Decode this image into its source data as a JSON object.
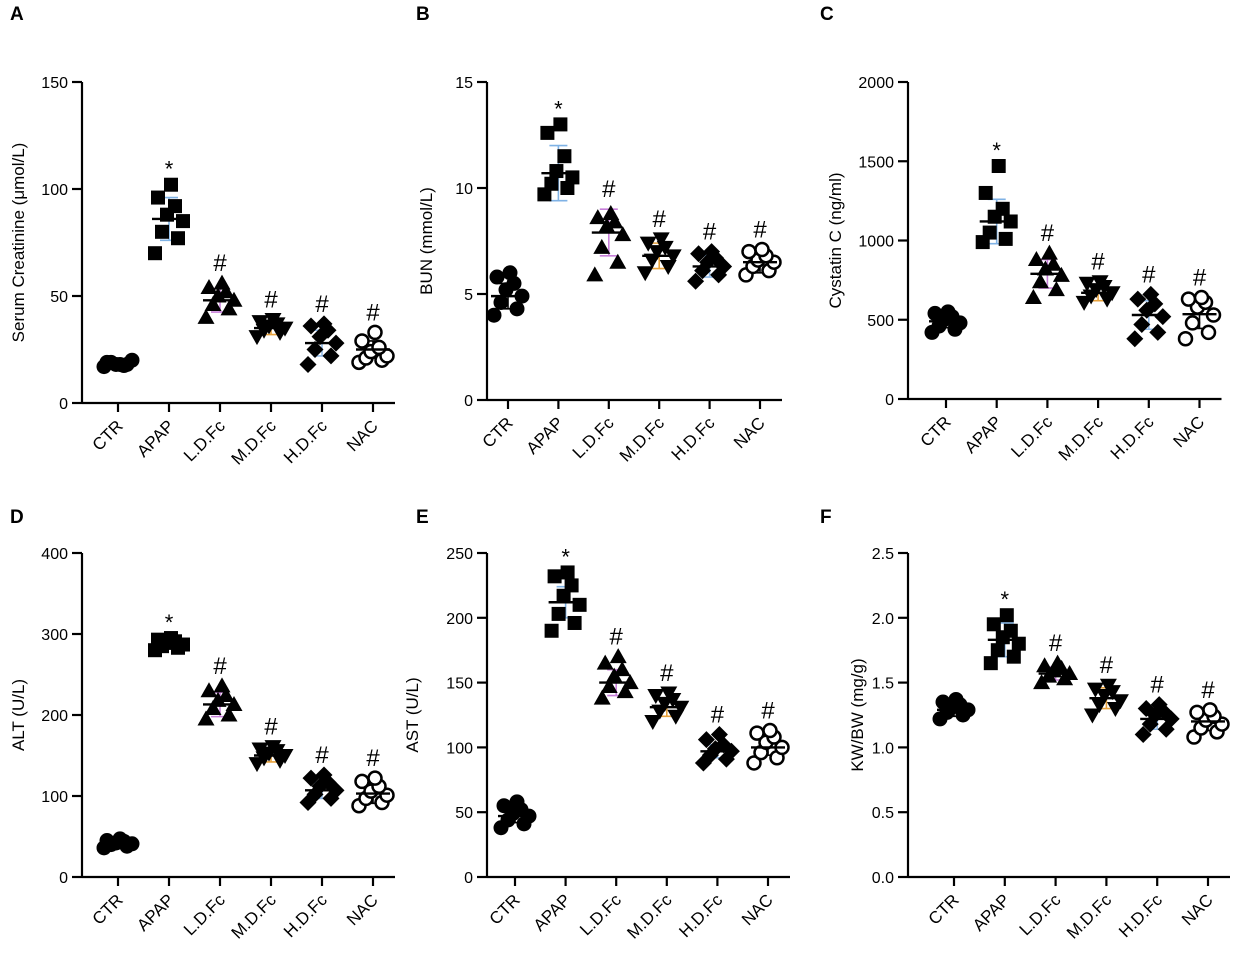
{
  "figure": {
    "title": ""
  },
  "chart_data": [
    {
      "type": "scatter",
      "letter": "A",
      "ylabel": "Serum Creatinine (μmol/L)",
      "ylim": [
        0,
        150
      ],
      "yticks": [
        0,
        50,
        100,
        150
      ],
      "categories": [
        "CTR",
        "APAP",
        "L.D.Fc",
        "M.D.Fc",
        "H.D.Fc",
        "NAC"
      ],
      "shapes": [
        "circle",
        "square",
        "triangle",
        "invtriangle",
        "diamond",
        "opencircle"
      ],
      "annotations": [
        "",
        "*",
        "#",
        "#",
        "#",
        "#"
      ],
      "means": [
        18.5,
        86,
        48,
        35,
        28,
        25
      ],
      "errors": [
        1.2,
        10,
        5.5,
        3,
        6,
        4
      ],
      "error_colors": [
        "#000000",
        "#7fb2e5",
        "#c77fd9",
        "#e8a23c",
        "#8fb9e6",
        "#000000"
      ],
      "points": [
        [
          17,
          18,
          19,
          20,
          18,
          17.5,
          19,
          18
        ],
        [
          70,
          77,
          80,
          85,
          88,
          92,
          96,
          102
        ],
        [
          40,
          44,
          46,
          48,
          50,
          52,
          54,
          56
        ],
        [
          31,
          33,
          34,
          35,
          36,
          37,
          38,
          39
        ],
        [
          18,
          22,
          25,
          28,
          31,
          34,
          36,
          37
        ],
        [
          19,
          20,
          21,
          22,
          24,
          26,
          29,
          33
        ]
      ]
    },
    {
      "type": "scatter",
      "letter": "B",
      "ylabel": "BUN (mmol/L)",
      "ylim": [
        0,
        15
      ],
      "yticks": [
        0,
        5,
        10,
        15
      ],
      "categories": [
        "CTR",
        "APAP",
        "L.D.Fc",
        "M.D.Fc",
        "H.D.Fc",
        "NAC"
      ],
      "shapes": [
        "circle",
        "square",
        "triangle",
        "invtriangle",
        "diamond",
        "opencircle"
      ],
      "annotations": [
        "",
        "*",
        "#",
        "#",
        "#",
        "#"
      ],
      "means": [
        4.9,
        10.7,
        7.9,
        6.8,
        6.3,
        6.5
      ],
      "errors": [
        0.6,
        1.3,
        1.1,
        0.6,
        0.5,
        0.5
      ],
      "error_colors": [
        "#000000",
        "#7fb2e5",
        "#c77fd9",
        "#e8a23c",
        "#8fb9e6",
        "#000000"
      ],
      "points": [
        [
          4.0,
          4.3,
          4.6,
          4.9,
          5.2,
          5.5,
          5.8,
          6.0
        ],
        [
          9.7,
          10.0,
          10.2,
          10.5,
          10.8,
          11.5,
          12.6,
          13.0
        ],
        [
          5.9,
          6.5,
          7.2,
          7.8,
          8.2,
          8.4,
          8.6,
          8.8
        ],
        [
          6.0,
          6.3,
          6.6,
          6.8,
          7.0,
          7.2,
          7.4,
          7.6
        ],
        [
          5.6,
          5.9,
          6.1,
          6.3,
          6.5,
          6.7,
          6.9,
          7.0
        ],
        [
          5.9,
          6.1,
          6.3,
          6.5,
          6.6,
          6.8,
          7.0,
          7.1
        ]
      ]
    },
    {
      "type": "scatter",
      "letter": "C",
      "ylabel": "Cystatin C (ng/ml)",
      "ylim": [
        0,
        2000
      ],
      "yticks": [
        0,
        500,
        1000,
        1500,
        2000
      ],
      "categories": [
        "CTR",
        "APAP",
        "L.D.Fc",
        "M.D.Fc",
        "H.D.Fc",
        "NAC"
      ],
      "shapes": [
        "circle",
        "square",
        "triangle",
        "invtriangle",
        "diamond",
        "opencircle"
      ],
      "annotations": [
        "",
        "*",
        "#",
        "#",
        "#",
        "#"
      ],
      "means": [
        490,
        1120,
        790,
        670,
        530,
        535
      ],
      "errors": [
        40,
        140,
        90,
        50,
        90,
        90
      ],
      "error_colors": [
        "#000000",
        "#7fb2e5",
        "#c77fd9",
        "#e8a23c",
        "#8fb9e6",
        "#000000"
      ],
      "points": [
        [
          420,
          440,
          460,
          480,
          500,
          520,
          540,
          550
        ],
        [
          990,
          1010,
          1050,
          1120,
          1150,
          1200,
          1300,
          1470
        ],
        [
          640,
          690,
          740,
          780,
          820,
          850,
          880,
          920
        ],
        [
          610,
          630,
          650,
          670,
          690,
          710,
          730,
          740
        ],
        [
          380,
          420,
          470,
          520,
          560,
          600,
          630,
          660
        ],
        [
          380,
          420,
          480,
          530,
          580,
          610,
          630,
          640
        ]
      ]
    },
    {
      "type": "scatter",
      "letter": "D",
      "ylabel": "ALT (U/L)",
      "ylim": [
        0,
        400
      ],
      "yticks": [
        0,
        100,
        200,
        300,
        400
      ],
      "categories": [
        "CTR",
        "APAP",
        "L.D.Fc",
        "M.D.Fc",
        "H.D.Fc",
        "NAC"
      ],
      "shapes": [
        "circle",
        "square",
        "triangle",
        "invtriangle",
        "diamond",
        "opencircle"
      ],
      "annotations": [
        "",
        "*",
        "#",
        "#",
        "#",
        "#"
      ],
      "means": [
        41,
        287,
        213,
        150,
        107,
        103
      ],
      "errors": [
        3,
        5,
        15,
        8,
        10,
        12
      ],
      "error_colors": [
        "#000000",
        "#7fb2e5",
        "#c77fd9",
        "#e8a23c",
        "#8fb9e6",
        "#000000"
      ],
      "points": [
        [
          36,
          38,
          40,
          41,
          42,
          44,
          45,
          47
        ],
        [
          280,
          283,
          285,
          287,
          289,
          291,
          293,
          295
        ],
        [
          195,
          200,
          208,
          213,
          218,
          224,
          230,
          236
        ],
        [
          140,
          144,
          147,
          150,
          153,
          156,
          158,
          161
        ],
        [
          92,
          97,
          102,
          107,
          112,
          117,
          122,
          126
        ],
        [
          88,
          92,
          97,
          101,
          106,
          112,
          118,
          122
        ]
      ]
    },
    {
      "type": "scatter",
      "letter": "E",
      "ylabel": "AST (U/L)",
      "ylim": [
        0,
        250
      ],
      "yticks": [
        0,
        50,
        100,
        150,
        200,
        250
      ],
      "categories": [
        "CTR",
        "APAP",
        "L.D.Fc",
        "M.D.Fc",
        "H.D.Fc",
        "NAC"
      ],
      "shapes": [
        "circle",
        "square",
        "triangle",
        "invtriangle",
        "diamond",
        "opencircle"
      ],
      "annotations": [
        "",
        "*",
        "#",
        "#",
        "#",
        "#"
      ],
      "means": [
        47,
        212,
        150,
        131,
        97,
        100
      ],
      "errors": [
        5,
        12,
        10,
        7,
        5,
        6
      ],
      "error_colors": [
        "#000000",
        "#7fb2e5",
        "#c77fd9",
        "#e8a23c",
        "#8fb9e6",
        "#000000"
      ],
      "points": [
        [
          38,
          41,
          44,
          47,
          49,
          52,
          55,
          58
        ],
        [
          190,
          196,
          203,
          210,
          217,
          225,
          232,
          235
        ],
        [
          138,
          143,
          147,
          150,
          155,
          160,
          165,
          170
        ],
        [
          120,
          124,
          128,
          131,
          134,
          137,
          140,
          142
        ],
        [
          88,
          91,
          94,
          97,
          99,
          102,
          106,
          110
        ],
        [
          88,
          92,
          96,
          100,
          104,
          108,
          111,
          113
        ]
      ]
    },
    {
      "type": "scatter",
      "letter": "F",
      "ylabel": "KW/BW (mg/g)",
      "ylim": [
        0,
        2.5
      ],
      "yticks": [
        0.0,
        0.5,
        1.0,
        1.5,
        2.0,
        2.5
      ],
      "ytick_decimals": 1,
      "categories": [
        "CTR",
        "APAP",
        "L.D.Fc",
        "M.D.Fc",
        "H.D.Fc",
        "NAC"
      ],
      "shapes": [
        "circle",
        "square",
        "triangle",
        "invtriangle",
        "diamond",
        "opencircle"
      ],
      "annotations": [
        "",
        "*",
        "#",
        "#",
        "#",
        "#"
      ],
      "means": [
        1.29,
        1.83,
        1.57,
        1.38,
        1.22,
        1.2
      ],
      "errors": [
        0.05,
        0.13,
        0.05,
        0.08,
        0.08,
        0.07
      ],
      "error_colors": [
        "#000000",
        "#7fb2e5",
        "#c77fd9",
        "#e8a23c",
        "#8fb9e6",
        "#000000"
      ],
      "points": [
        [
          1.22,
          1.25,
          1.27,
          1.29,
          1.31,
          1.33,
          1.35,
          1.37
        ],
        [
          1.65,
          1.7,
          1.75,
          1.8,
          1.85,
          1.9,
          1.95,
          2.02
        ],
        [
          1.5,
          1.53,
          1.55,
          1.57,
          1.59,
          1.61,
          1.63,
          1.65
        ],
        [
          1.25,
          1.3,
          1.33,
          1.36,
          1.4,
          1.43,
          1.45,
          1.48
        ],
        [
          1.1,
          1.14,
          1.18,
          1.22,
          1.25,
          1.28,
          1.3,
          1.33
        ],
        [
          1.08,
          1.12,
          1.15,
          1.18,
          1.21,
          1.24,
          1.27,
          1.29
        ]
      ]
    }
  ]
}
